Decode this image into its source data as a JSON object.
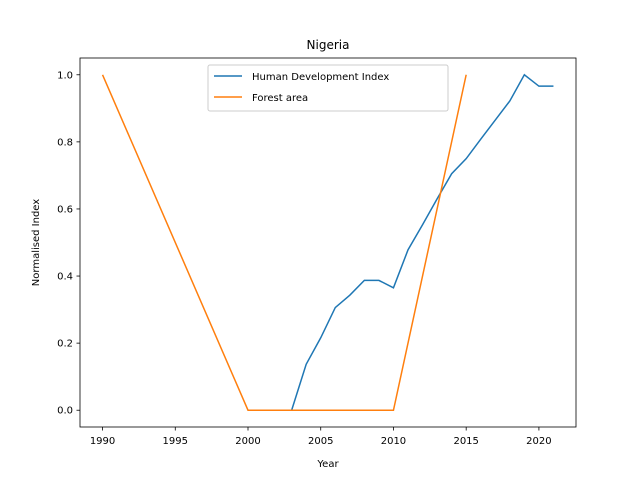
{
  "chart_data": {
    "type": "line",
    "title": "Nigeria",
    "xlabel": "Year",
    "ylabel": "Normalised Index",
    "xlim": [
      1988.45,
      2022.55
    ],
    "ylim": [
      -0.05,
      1.05
    ],
    "xticks": [
      1990,
      1995,
      2000,
      2005,
      2010,
      2015,
      2020
    ],
    "yticks": [
      0.0,
      0.2,
      0.4,
      0.6,
      0.8,
      1.0
    ],
    "ytick_labels": [
      "0.0",
      "0.2",
      "0.4",
      "0.6",
      "0.8",
      "1.0"
    ],
    "grid": false,
    "legend_position": "upper center",
    "series": [
      {
        "name": "Human Development Index",
        "color": "#1f77b4",
        "x": [
          2003,
          2004,
          2005,
          2006,
          2007,
          2008,
          2009,
          2010,
          2011,
          2012,
          2013,
          2014,
          2015,
          2016,
          2017,
          2018,
          2019,
          2020,
          2021
        ],
        "y": [
          0.0,
          0.137,
          0.216,
          0.306,
          0.343,
          0.387,
          0.387,
          0.365,
          0.478,
          0.553,
          0.63,
          0.705,
          0.75,
          0.808,
          0.865,
          0.922,
          1.0,
          0.966,
          0.966
        ]
      },
      {
        "name": "Forest area",
        "color": "#ff7f0e",
        "x": [
          1990,
          2000,
          2005,
          2010,
          2015
        ],
        "y": [
          1.0,
          0.0,
          0.0,
          0.0,
          1.0
        ]
      }
    ]
  }
}
